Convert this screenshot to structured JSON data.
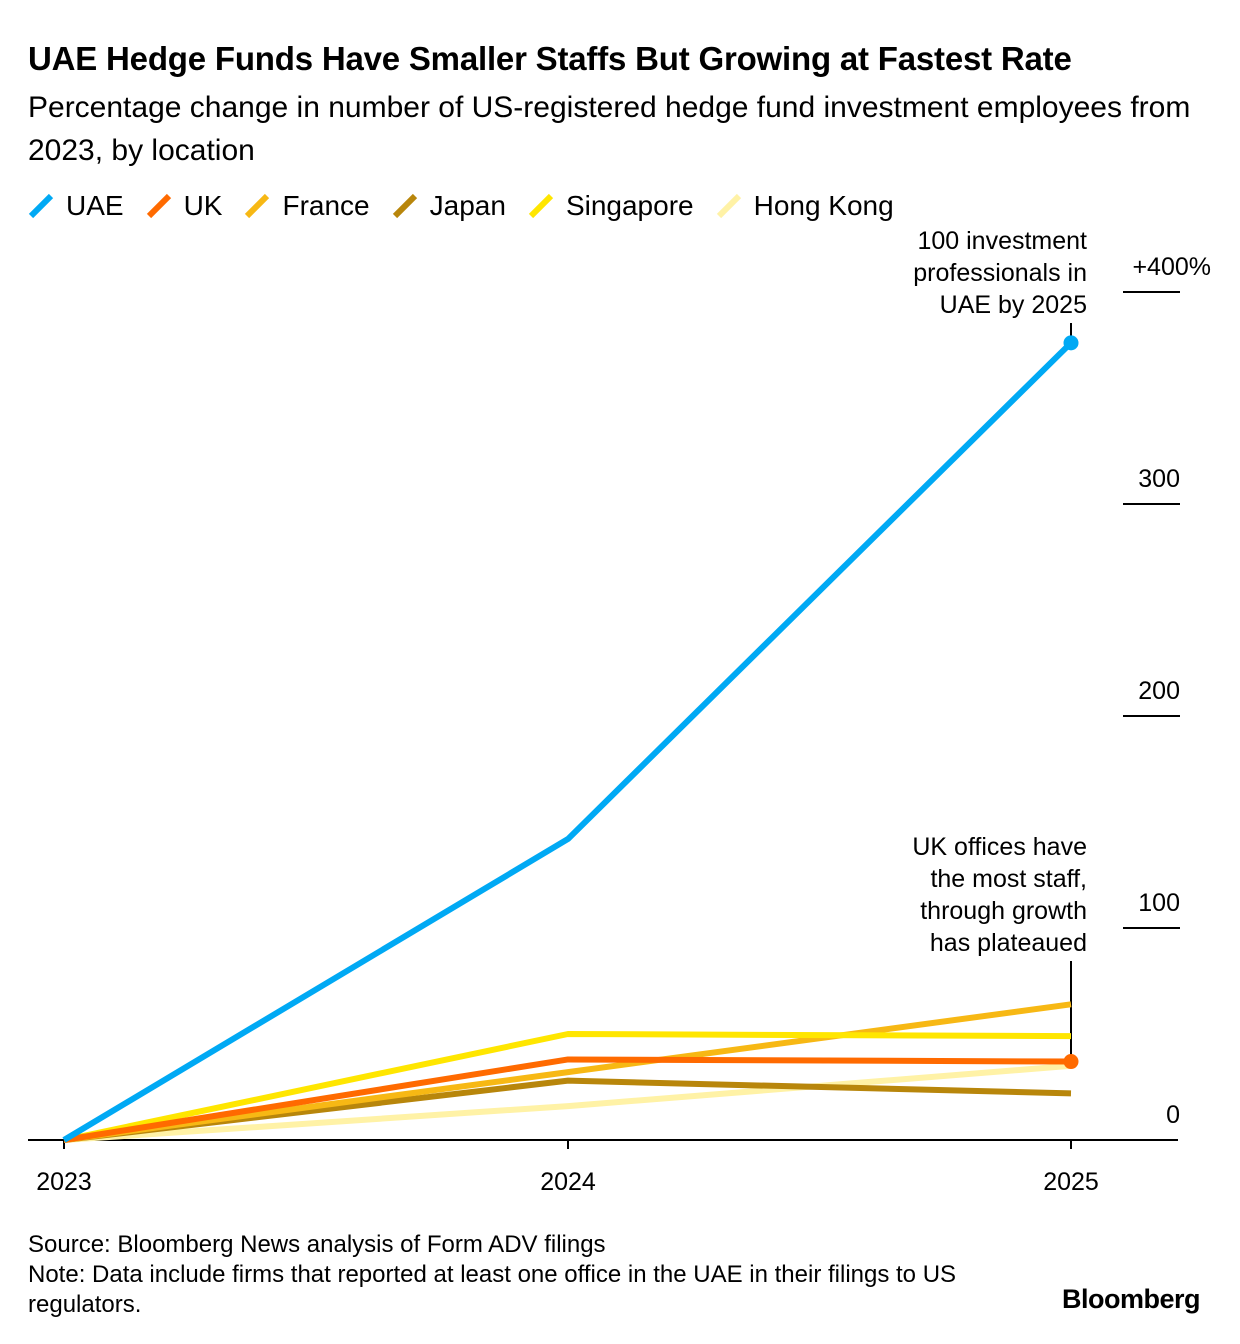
{
  "title": "UAE Hedge Funds Have Smaller Staffs But Growing at Fastest Rate",
  "subtitle": "Percentage change in number of US-registered hedge fund investment employees from 2023, by location",
  "source": "Source: Bloomberg News analysis of Form ADV filings",
  "note": "Note: Data include firms that reported at least one office in the UAE in their filings to US regulators.",
  "brand": "Bloomberg",
  "chart_data": {
    "type": "line",
    "x": [
      "2023",
      "2024",
      "2025"
    ],
    "x_tick_labels": [
      "2023",
      "2024",
      "2025"
    ],
    "ylim": [
      0,
      400
    ],
    "y_ticks": [
      0,
      100,
      200,
      300,
      400
    ],
    "y_tick_labels": [
      "0",
      "100",
      "200",
      "300",
      "+400%"
    ],
    "y_axis_side": "right",
    "grid": false,
    "legend_position": "top-left",
    "series": [
      {
        "name": "Hong Kong",
        "color": "#fff2a6",
        "values": [
          0,
          16,
          35
        ]
      },
      {
        "name": "Japan",
        "color": "#b8860b",
        "values": [
          0,
          28,
          22
        ]
      },
      {
        "name": "France",
        "color": "#f7b814",
        "values": [
          0,
          32,
          64
        ]
      },
      {
        "name": "Singapore",
        "color": "#ffe600",
        "values": [
          0,
          50,
          49
        ]
      },
      {
        "name": "UK",
        "color": "#ff6a00",
        "values": [
          0,
          38,
          37
        ],
        "end_marker": true
      },
      {
        "name": "UAE",
        "color": "#00a9f4",
        "values": [
          0,
          142,
          376
        ],
        "end_marker": true
      }
    ],
    "legend_order": [
      "UAE",
      "UK",
      "France",
      "Japan",
      "Singapore",
      "Hong Kong"
    ],
    "annotations": [
      {
        "series": "UAE",
        "x": "2025",
        "lines": [
          "100 investment",
          "professionals in",
          "UAE by 2025"
        ]
      },
      {
        "series": "UK",
        "x": "2025",
        "lines": [
          "UK offices have",
          "the most staff,",
          "through growth",
          "has plateaued"
        ]
      }
    ]
  }
}
